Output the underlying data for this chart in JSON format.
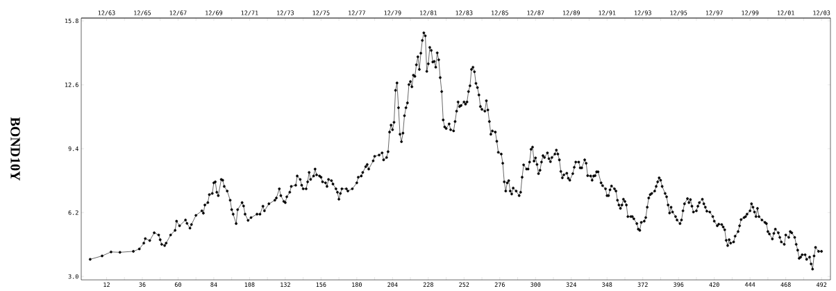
{
  "chart_data": {
    "type": "line",
    "ylabel": "BOND10Y",
    "color": "#000000",
    "marker": "circle",
    "line_style": "solid",
    "xlim": [
      -5,
      498
    ],
    "ylim": [
      2.83,
      15.94
    ],
    "xticks": [
      12,
      {
        "value": 24,
        "label": null
      },
      36,
      {
        "value": 48,
        "label": null
      },
      60,
      {
        "value": 72,
        "label": null
      },
      84,
      {
        "value": 96,
        "label": null
      },
      108,
      {
        "value": 120,
        "label": null
      },
      132,
      {
        "value": 144,
        "label": null
      },
      156,
      {
        "value": 168,
        "label": null
      },
      180,
      {
        "value": 192,
        "label": null
      },
      204,
      {
        "value": 216,
        "label": null
      },
      228,
      {
        "value": 240,
        "label": null
      },
      252,
      {
        "value": 264,
        "label": null
      },
      276,
      {
        "value": 288,
        "label": null
      },
      300,
      {
        "value": 312,
        "label": null
      },
      324,
      {
        "value": 336,
        "label": null
      },
      348,
      {
        "value": 360,
        "label": null
      },
      372,
      {
        "value": 384,
        "label": null
      },
      396,
      {
        "value": 408,
        "label": null
      },
      420,
      {
        "value": 432,
        "label": null
      },
      444,
      {
        "value": 456,
        "label": null
      },
      468,
      {
        "value": 480,
        "label": null
      },
      492
    ],
    "x2lim": [
      "1962-07",
      "2004-06"
    ],
    "x2ticks": [
      {
        "value": "1963-12",
        "label": "12/63"
      },
      {
        "value": "1964-12",
        "label": null
      },
      {
        "value": "1965-12",
        "label": "12/65"
      },
      {
        "value": "1966-12",
        "label": null
      },
      {
        "value": "1967-12",
        "label": "12/67"
      },
      {
        "value": "1968-12",
        "label": null
      },
      {
        "value": "1969-12",
        "label": "12/69"
      },
      {
        "value": "1970-12",
        "label": null
      },
      {
        "value": "1971-12",
        "label": "12/71"
      },
      {
        "value": "1972-12",
        "label": null
      },
      {
        "value": "1973-12",
        "label": "12/73"
      },
      {
        "value": "1974-12",
        "label": null
      },
      {
        "value": "1975-12",
        "label": "12/75"
      },
      {
        "value": "1976-12",
        "label": null
      },
      {
        "value": "1977-12",
        "label": "12/77"
      },
      {
        "value": "1978-12",
        "label": null
      },
      {
        "value": "1979-12",
        "label": "12/79"
      },
      {
        "value": "1980-12",
        "label": null
      },
      {
        "value": "1981-12",
        "label": "12/81"
      },
      {
        "value": "1982-12",
        "label": null
      },
      {
        "value": "1983-12",
        "label": "12/83"
      },
      {
        "value": "1984-12",
        "label": null
      },
      {
        "value": "1985-12",
        "label": "12/85"
      },
      {
        "value": "1986-12",
        "label": null
      },
      {
        "value": "1987-12",
        "label": "12/87"
      },
      {
        "value": "1988-12",
        "label": null
      },
      {
        "value": "1989-12",
        "label": "12/89"
      },
      {
        "value": "1990-12",
        "label": null
      },
      {
        "value": "1991-12",
        "label": "12/91"
      },
      {
        "value": "1992-12",
        "label": null
      },
      {
        "value": "1993-12",
        "label": "12/93"
      },
      {
        "value": "1994-12",
        "label": null
      },
      {
        "value": "1995-12",
        "label": "12/95"
      },
      {
        "value": "1996-12",
        "label": null
      },
      {
        "value": "1997-12",
        "label": "12/97"
      },
      {
        "value": "1998-12",
        "label": null
      },
      {
        "value": "1999-12",
        "label": "12/99"
      },
      {
        "value": "2000-12",
        "label": null
      },
      {
        "value": "2001-12",
        "label": "12/01"
      },
      {
        "value": "2002-12",
        "label": null
      },
      {
        "value": "2003-12",
        "label": "12/03"
      }
    ],
    "yticks": [
      {
        "value": 3.0,
        "label": "3.0"
      },
      6.2,
      9.4,
      12.6,
      15.8
    ],
    "x": [
      1,
      9,
      15,
      21,
      30,
      34,
      37,
      38,
      41,
      44,
      47,
      48,
      49,
      51,
      52,
      55,
      58,
      59,
      61,
      65,
      66,
      68,
      69,
      72,
      76,
      77,
      78,
      80,
      81,
      83,
      84,
      85,
      86,
      87,
      89,
      90,
      91,
      93,
      95,
      96,
      97,
      99,
      100,
      103,
      104,
      105,
      107,
      109,
      113,
      115,
      117,
      118,
      121,
      125,
      126,
      128,
      129,
      131,
      132,
      133,
      135,
      136,
      139,
      140,
      142,
      143,
      144,
      146,
      147,
      148,
      149,
      151,
      152,
      153,
      155,
      156,
      157,
      159,
      160,
      161,
      163,
      164,
      166,
      167,
      168,
      169,
      170,
      173,
      174,
      177,
      180,
      181,
      183,
      184,
      186,
      187,
      188,
      191,
      192,
      195,
      197,
      198,
      200,
      201,
      202,
      203,
      204,
      205,
      206,
      207,
      208,
      209,
      210,
      211,
      212,
      213,
      214,
      215,
      216,
      217,
      218,
      219,
      220,
      221,
      222,
      223,
      224,
      225,
      226,
      227,
      228,
      229,
      230,
      231,
      232,
      233,
      234,
      235,
      236,
      237,
      238,
      239,
      240,
      242,
      243,
      245,
      246,
      247,
      248,
      249,
      250,
      252,
      253,
      254,
      255,
      256,
      257,
      258,
      259,
      260,
      261,
      262,
      263,
      264,
      266,
      267,
      268,
      269,
      270,
      271,
      273,
      274,
      275,
      277,
      278,
      279,
      280,
      281,
      282,
      283,
      284,
      285,
      287,
      289,
      290,
      291,
      292,
      294,
      295,
      296,
      297,
      298,
      299,
      300,
      301,
      302,
      303,
      304,
      305,
      306,
      308,
      309,
      310,
      311,
      313,
      314,
      315,
      316,
      317,
      318,
      319,
      321,
      322,
      323,
      325,
      326,
      327,
      329,
      330,
      331,
      333,
      334,
      335,
      337,
      338,
      339,
      340,
      341,
      342,
      344,
      345,
      347,
      348,
      349,
      350,
      351,
      353,
      354,
      355,
      356,
      357,
      358,
      359,
      360,
      361,
      362,
      364,
      365,
      366,
      368,
      369,
      370,
      371,
      373,
      374,
      375,
      376,
      377,
      378,
      380,
      381,
      382,
      383,
      384,
      385,
      387,
      388,
      389,
      390,
      391,
      392,
      394,
      395,
      397,
      398,
      399,
      400,
      402,
      403,
      404,
      405,
      406,
      408,
      409,
      410,
      412,
      413,
      414,
      415,
      417,
      419,
      420,
      422,
      423,
      425,
      426,
      427,
      428,
      429,
      430,
      431,
      433,
      434,
      436,
      437,
      438,
      440,
      441,
      442,
      444,
      445,
      446,
      447,
      448,
      449,
      450,
      452,
      454,
      455,
      456,
      457,
      459,
      460,
      461,
      463,
      464,
      465,
      467,
      468,
      470,
      471,
      472,
      474,
      475,
      476,
      477,
      478,
      479,
      481,
      482,
      484,
      485,
      486,
      487,
      488,
      490,
      492
    ],
    "values": [
      3.86,
      4.03,
      4.23,
      4.21,
      4.26,
      4.38,
      4.67,
      4.9,
      4.8,
      5.19,
      5.08,
      4.84,
      4.61,
      4.55,
      4.67,
      5.08,
      5.31,
      5.77,
      5.54,
      5.83,
      5.66,
      5.42,
      5.6,
      6.06,
      6.29,
      6.17,
      6.58,
      6.7,
      7.1,
      7.16,
      7.69,
      7.74,
      7.22,
      7.05,
      7.86,
      7.82,
      7.51,
      7.28,
      6.82,
      6.35,
      6.12,
      5.65,
      6.35,
      6.7,
      6.53,
      6.12,
      5.81,
      5.95,
      6.12,
      6.12,
      6.52,
      6.29,
      6.64,
      6.82,
      6.93,
      7.39,
      7.05,
      6.76,
      6.7,
      6.99,
      7.22,
      7.51,
      7.57,
      8.03,
      7.86,
      7.57,
      7.39,
      7.39,
      7.74,
      8.21,
      7.86,
      8.03,
      8.38,
      8.09,
      8.03,
      7.97,
      7.74,
      7.69,
      7.51,
      7.86,
      7.8,
      7.63,
      7.39,
      7.22,
      6.87,
      7.16,
      7.39,
      7.39,
      7.28,
      7.39,
      7.69,
      7.97,
      8.03,
      8.21,
      8.5,
      8.61,
      8.38,
      8.79,
      9.02,
      9.08,
      9.19,
      8.84,
      8.96,
      9.25,
      10.23,
      10.58,
      10.35,
      10.72,
      12.32,
      12.69,
      11.45,
      10.12,
      9.75,
      10.18,
      11.05,
      11.45,
      11.69,
      12.61,
      12.76,
      12.5,
      13.08,
      13.02,
      13.6,
      14.0,
      13.37,
      14.18,
      14.82,
      15.2,
      15.05,
      13.27,
      13.65,
      14.47,
      14.32,
      13.74,
      13.77,
      13.48,
      14.2,
      13.85,
      12.96,
      12.26,
      10.84,
      10.49,
      10.41,
      10.64,
      10.35,
      10.29,
      10.76,
      11.28,
      11.74,
      11.51,
      11.56,
      11.74,
      11.63,
      11.74,
      12.26,
      12.55,
      13.37,
      13.48,
      13.25,
      12.67,
      12.46,
      12.09,
      11.51,
      11.37,
      11.28,
      11.8,
      11.34,
      10.76,
      10.12,
      10.29,
      10.23,
      9.77,
      9.22,
      9.13,
      8.67,
      7.74,
      7.28,
      7.69,
      7.8,
      7.28,
      7.13,
      7.43,
      7.28,
      7.05,
      7.22,
      7.97,
      8.59,
      8.38,
      8.38,
      8.73,
      9.37,
      9.48,
      8.78,
      8.94,
      8.61,
      8.15,
      8.32,
      8.73,
      9.05,
      8.96,
      9.19,
      8.9,
      8.75,
      8.96,
      9.13,
      9.33,
      9.13,
      8.84,
      8.26,
      7.94,
      8.09,
      8.17,
      7.92,
      7.82,
      8.15,
      8.47,
      8.73,
      8.73,
      8.44,
      8.44,
      8.84,
      8.67,
      8.05,
      8.03,
      7.82,
      8.03,
      8.05,
      8.24,
      8.24,
      7.69,
      7.55,
      7.39,
      7.05,
      7.05,
      7.34,
      7.53,
      7.39,
      7.28,
      6.82,
      6.58,
      6.41,
      6.58,
      6.87,
      6.76,
      6.58,
      6.0,
      6.0,
      6.0,
      5.89,
      5.65,
      5.37,
      5.31,
      5.71,
      5.77,
      5.95,
      6.47,
      6.93,
      7.1,
      7.16,
      7.28,
      7.51,
      7.74,
      7.94,
      7.82,
      7.51,
      7.16,
      6.99,
      6.58,
      6.18,
      6.47,
      6.23,
      6.0,
      5.83,
      5.65,
      5.83,
      6.29,
      6.64,
      6.9,
      6.7,
      6.85,
      6.52,
      6.23,
      6.29,
      6.52,
      6.7,
      6.87,
      6.64,
      6.47,
      6.27,
      6.23,
      6.0,
      5.77,
      5.54,
      5.62,
      5.6,
      5.48,
      5.34,
      4.81,
      4.55,
      4.84,
      4.67,
      4.73,
      5.02,
      5.25,
      5.54,
      5.85,
      5.95,
      6.0,
      6.12,
      6.29,
      6.64,
      6.47,
      6.23,
      6.0,
      6.41,
      6.0,
      5.83,
      5.71,
      5.65,
      5.25,
      5.13,
      4.88,
      5.16,
      5.37,
      5.19,
      4.96,
      4.73,
      4.61,
      5.08,
      4.96,
      5.25,
      5.19,
      4.96,
      4.61,
      4.32,
      3.91,
      3.97,
      4.09,
      4.09,
      3.86,
      3.97,
      3.63,
      3.37,
      4.03,
      4.46,
      4.26,
      4.26
    ]
  }
}
